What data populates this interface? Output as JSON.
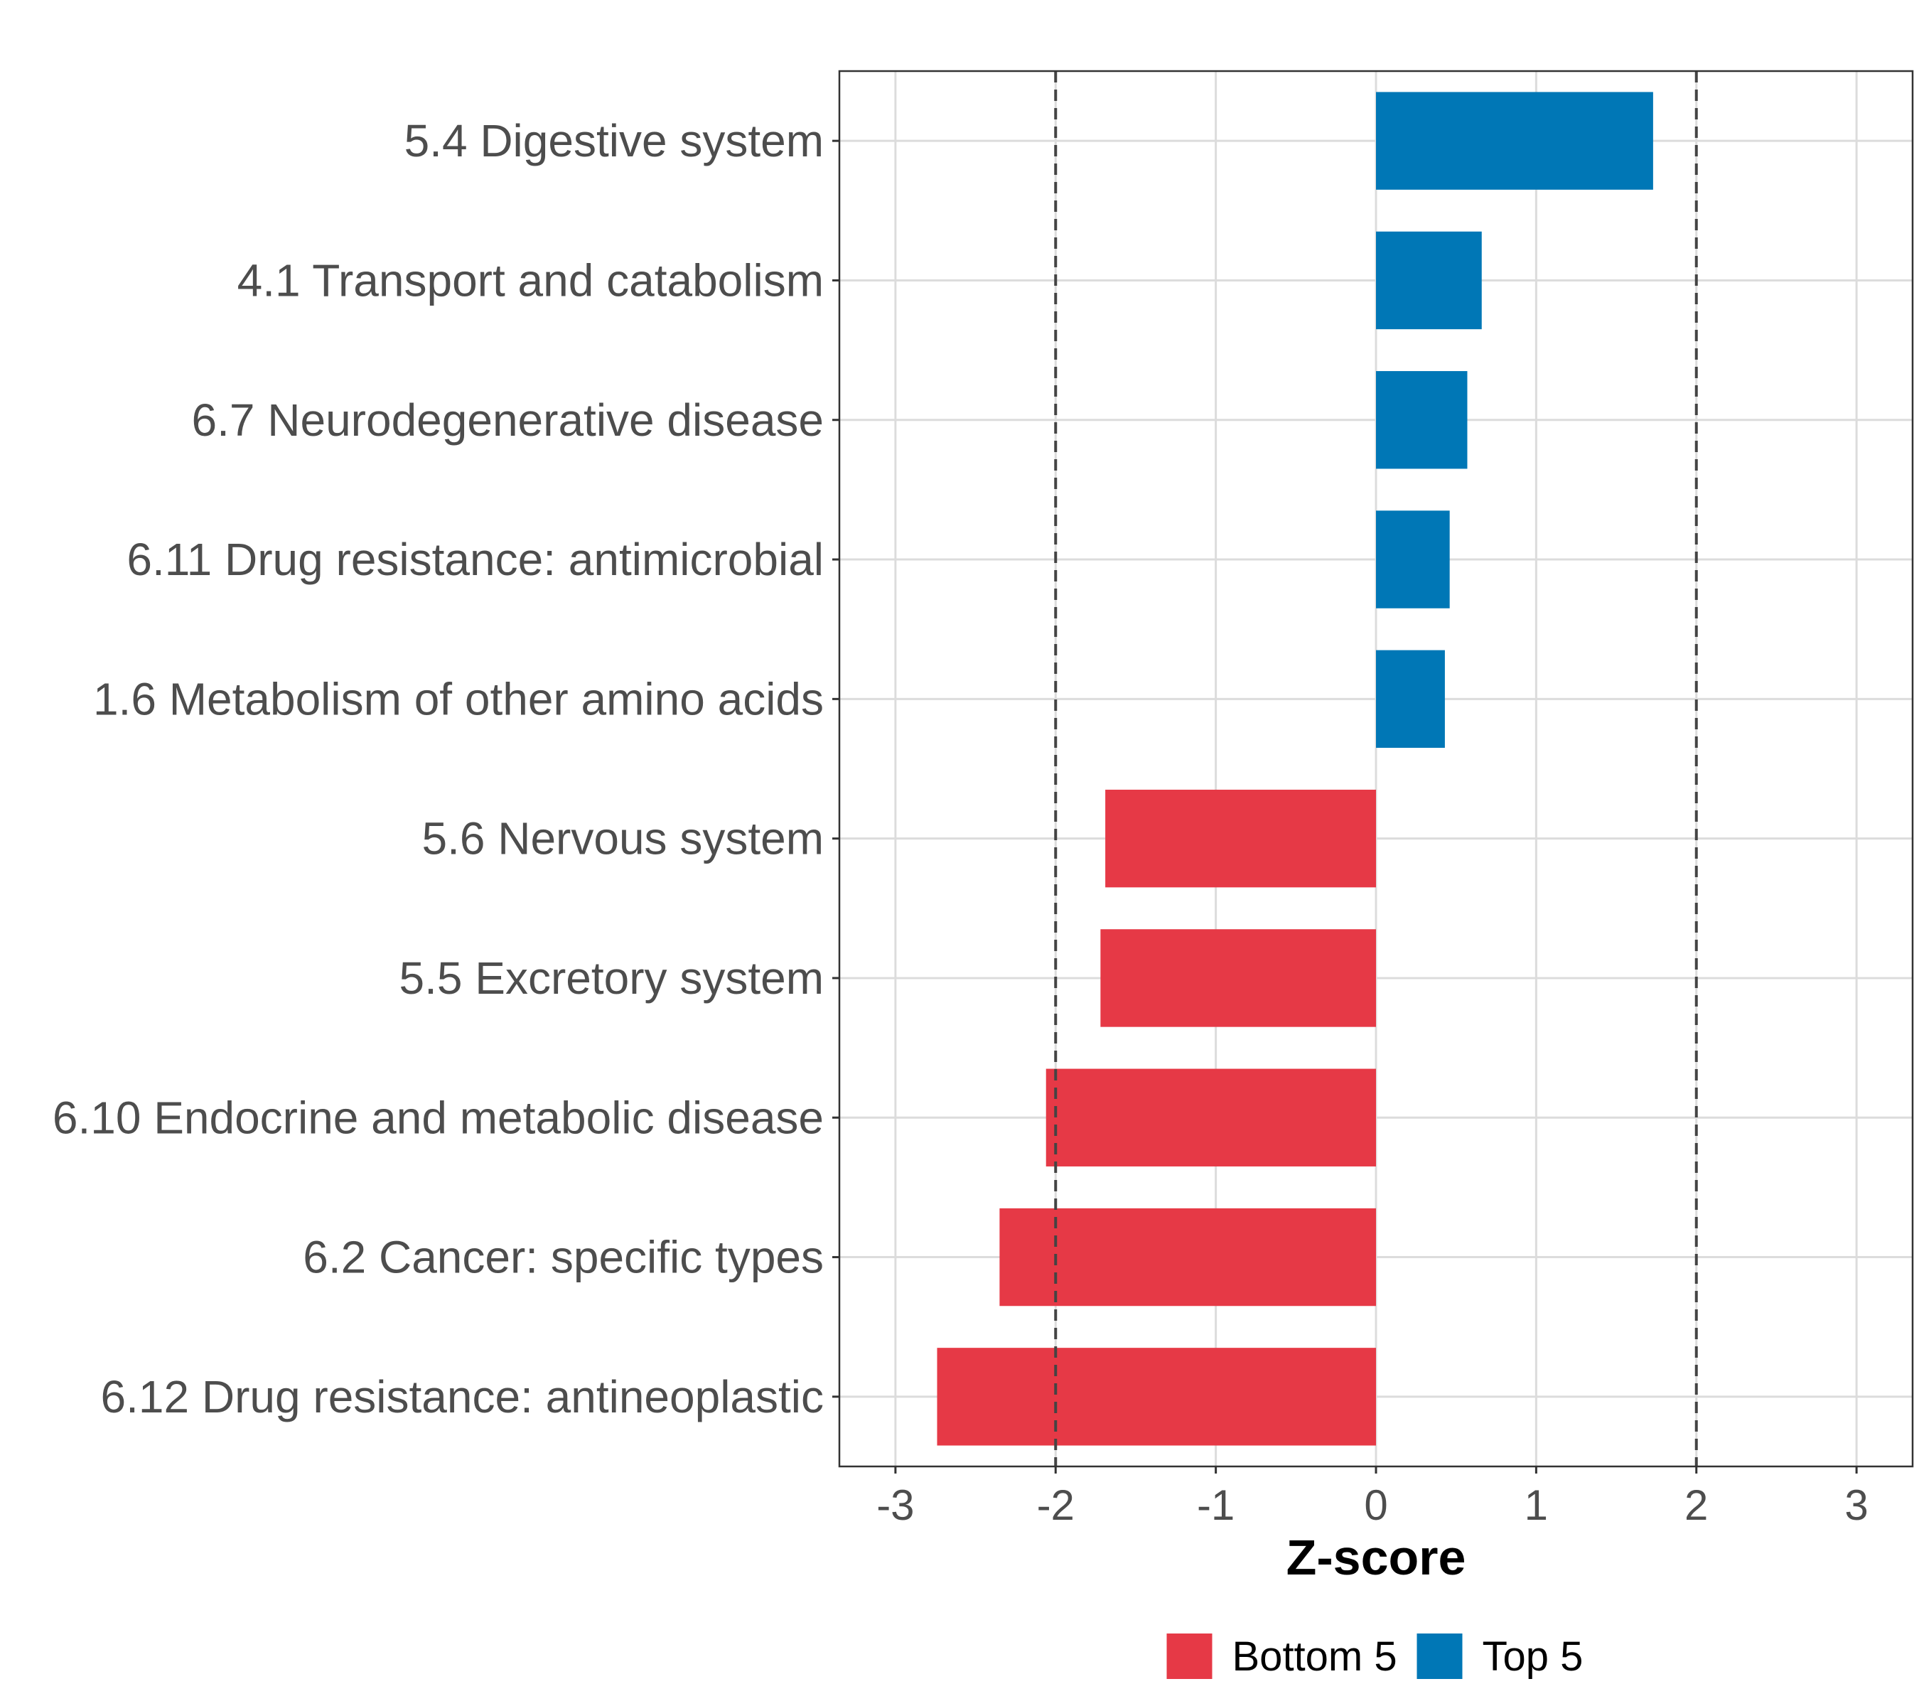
{
  "chart_data": {
    "type": "bar",
    "orientation": "horizontal",
    "categories": [
      "5.4 Digestive system",
      "4.1 Transport and catabolism",
      "6.7 Neurodegenerative disease",
      "6.11 Drug resistance: antimicrobial",
      "1.6 Metabolism of other amino acids",
      "5.6 Nervous system",
      "5.5 Excretory system",
      "6.10 Endocrine and metabolic disease",
      "6.2 Cancer: specific types",
      "6.12 Drug resistance: antineoplastic"
    ],
    "values": [
      1.73,
      0.66,
      0.57,
      0.46,
      0.43,
      -1.69,
      -1.72,
      -2.06,
      -2.35,
      -2.74
    ],
    "groups": [
      "Top 5",
      "Top 5",
      "Top 5",
      "Top 5",
      "Top 5",
      "Bottom 5",
      "Bottom 5",
      "Bottom 5",
      "Bottom 5",
      "Bottom 5"
    ],
    "xlabel": "Z-score",
    "ylabel": "",
    "xlim": [
      -3.35,
      3.35
    ],
    "xticks": [
      -3,
      -2,
      -1,
      0,
      1,
      2,
      3
    ],
    "xtick_labels": [
      "-3",
      "-2",
      "-1",
      "0",
      "1",
      "2",
      "3"
    ],
    "reference_lines": [
      -2,
      2
    ],
    "grid": true,
    "legend": {
      "position": "bottom",
      "entries": [
        {
          "label": "Bottom 5",
          "color": "#e63946"
        },
        {
          "label": "Top 5",
          "color": "#0077b6"
        }
      ]
    }
  }
}
